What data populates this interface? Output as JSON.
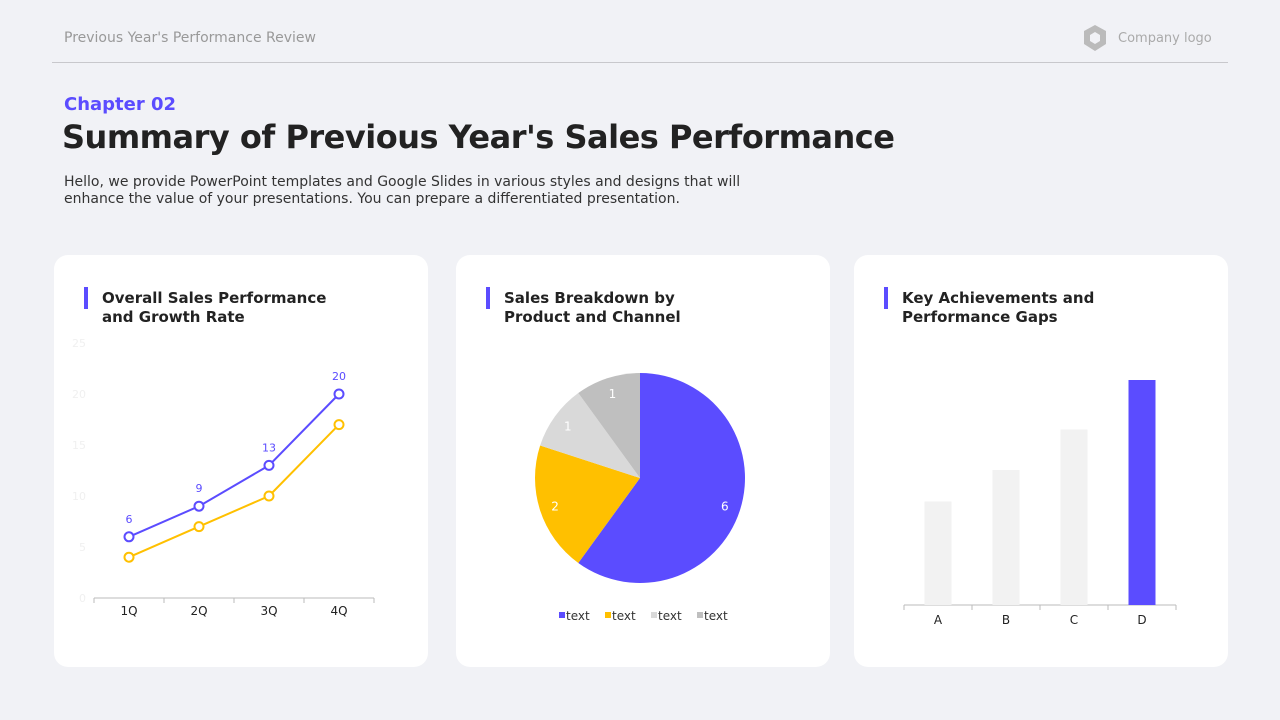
{
  "header": {
    "title": "Previous Year's Performance Review",
    "logo_text": "Company logo"
  },
  "chapter": "Chapter 02",
  "title": "Summary of Previous Year's Sales Performance",
  "description": "Hello, we provide PowerPoint templates and Google Slides in various styles and designs that will enhance the value of your presentations. You can prepare a differentiated presentation.",
  "cards": [
    {
      "title": "Overall Sales Performance and Growth Rate"
    },
    {
      "title": "Sales Breakdown by Product and Channel"
    },
    {
      "title": "Key Achievements and Performance Gaps"
    }
  ],
  "chart_data": [
    {
      "type": "line",
      "categories": [
        "1Q",
        "2Q",
        "3Q",
        "4Q"
      ],
      "yticks": [
        "0",
        "5",
        "10",
        "15",
        "20",
        "25"
      ],
      "ylim": [
        0,
        25
      ],
      "series": [
        {
          "values": [
            6,
            9,
            13,
            20
          ],
          "color": "#5b4cff",
          "labels": [
            "6",
            "9",
            "13",
            "20"
          ]
        },
        {
          "values": [
            4,
            7,
            10,
            17
          ],
          "color": "#ffc000"
        }
      ]
    },
    {
      "type": "pie",
      "values": [
        6,
        2,
        1,
        1
      ],
      "labels": [
        "6",
        "2",
        "1",
        "1"
      ],
      "colors": [
        "#5b4cff",
        "#ffc000",
        "#d9d9d9",
        "#bfbfbf"
      ],
      "legend": [
        "text",
        "text",
        "text",
        "text"
      ],
      "legend_placement": "bottom"
    },
    {
      "type": "bar",
      "categories": [
        "A",
        "B",
        "C",
        "D"
      ],
      "values": [
        2.3,
        3.0,
        3.9,
        5.0
      ],
      "ylim": [
        0,
        5
      ],
      "colors": [
        "#f2f2f2",
        "#f2f2f2",
        "#f2f2f2",
        "#5b4cff"
      ]
    }
  ]
}
